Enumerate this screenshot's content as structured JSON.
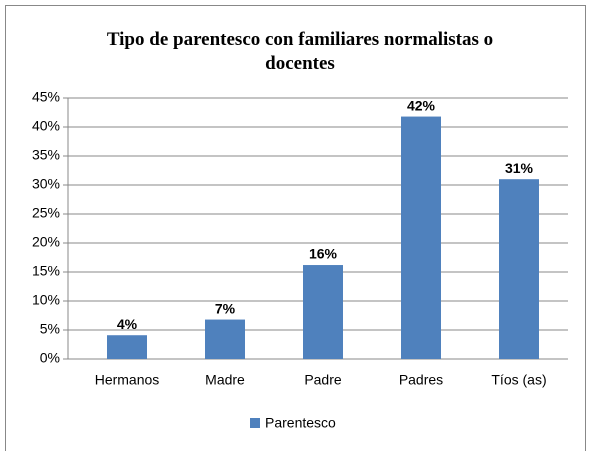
{
  "chart_data": {
    "type": "bar",
    "title": "Tipo de parentesco  con familiares normalistas  o docentes",
    "categories": [
      "Hermanos",
      "Madre",
      "Padre",
      "Padres",
      "Tíos (as)"
    ],
    "series": [
      {
        "name": "Parentesco",
        "color": "#4f81bd",
        "values": [
          4.1,
          6.8,
          16.2,
          41.8,
          31
        ],
        "value_labels": [
          "4%",
          "7%",
          "16%",
          "42%",
          "31%"
        ]
      }
    ],
    "ylim": [
      0,
      45
    ],
    "yticks": [
      {
        "value": 0,
        "label": "0%"
      },
      {
        "value": 5,
        "label": "5%"
      },
      {
        "value": 10,
        "label": "10%"
      },
      {
        "value": 15,
        "label": "15%"
      },
      {
        "value": 20,
        "label": "20%"
      },
      {
        "value": 25,
        "label": "25%"
      },
      {
        "value": 30,
        "label": "30%"
      },
      {
        "value": 35,
        "label": "35%"
      },
      {
        "value": 40,
        "label": "40%"
      },
      {
        "value": 45,
        "label": "45%"
      }
    ],
    "grid": true,
    "legend": "bottom"
  }
}
